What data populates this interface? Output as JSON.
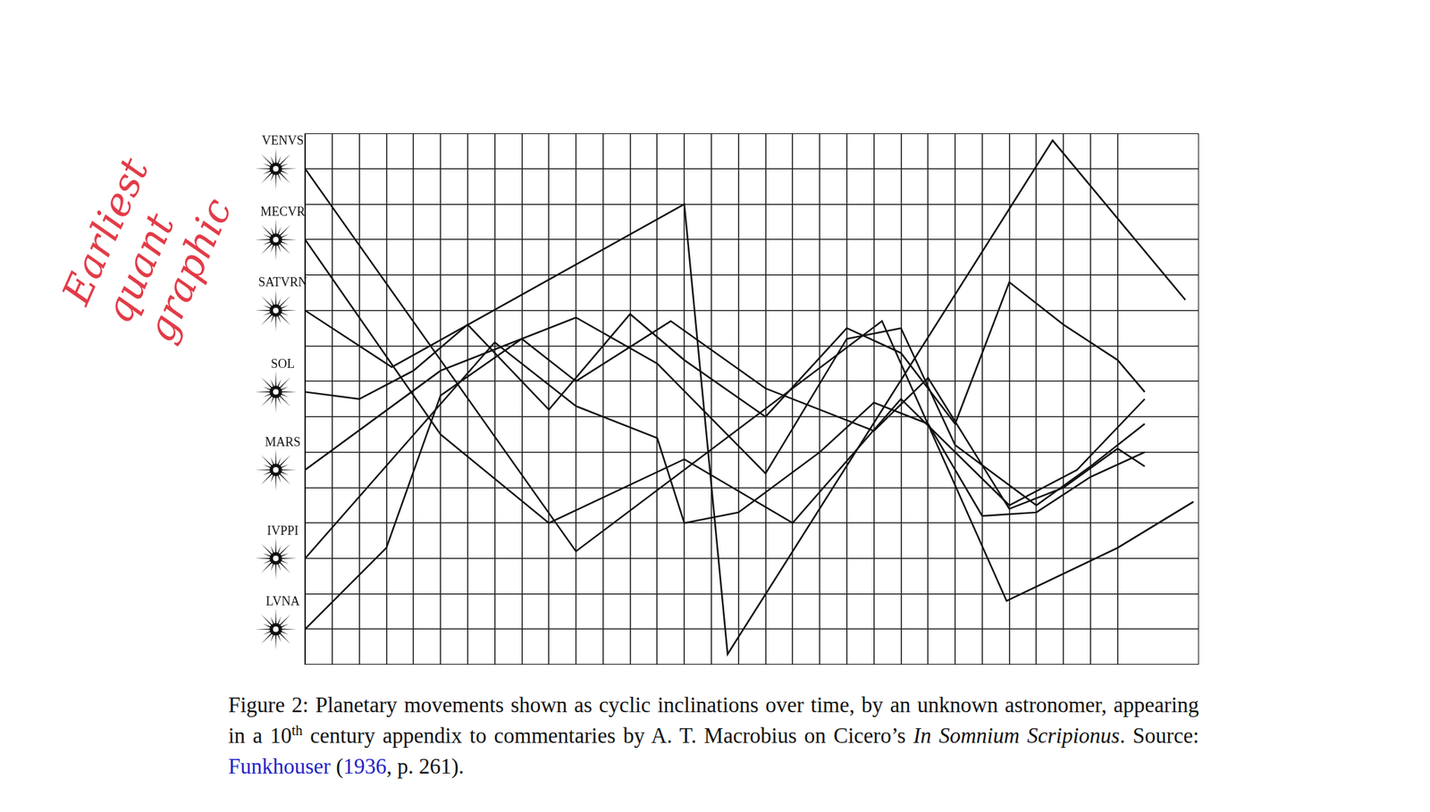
{
  "chart_data": {
    "type": "line",
    "xlim": [
      0,
      33
    ],
    "xticks": [
      0,
      1,
      2,
      3,
      4,
      5,
      6,
      7,
      8,
      9,
      10,
      11,
      12,
      13,
      14,
      15,
      16,
      17,
      18,
      19,
      20,
      21,
      22,
      23,
      24,
      25,
      26,
      27,
      28,
      29,
      30
    ],
    "ylim": [
      -1,
      14
    ],
    "yticks": [
      0,
      1,
      2,
      3,
      4,
      5,
      6,
      7,
      8,
      9,
      10,
      11,
      12,
      13
    ],
    "grid": true,
    "tick_labels": false,
    "color": "#111111",
    "marker": "none",
    "series": [
      {
        "name": "VENVS",
        "x": [
          0,
          10,
          21.3,
          25.9,
          30,
          32.8
        ],
        "values": [
          13,
          2.2,
          8.7,
          0.8,
          2.3,
          3.6
        ]
      },
      {
        "name": "MECVR",
        "x": [
          0,
          5,
          9,
          14,
          18,
          22,
          26,
          28.5,
          31
        ],
        "values": [
          11,
          5.5,
          3,
          4.8,
          3,
          6.5,
          3.5,
          4.5,
          6.5
        ]
      },
      {
        "name": "SATVRN",
        "x": [
          0,
          3.2,
          14,
          15.6,
          27.6,
          32.5
        ],
        "values": [
          9,
          7.4,
          12,
          -0.7,
          13.8,
          9.3
        ]
      },
      {
        "name": "SOL",
        "x": [
          0,
          2,
          4,
          6,
          9,
          12,
          14,
          17,
          20,
          22,
          24,
          26,
          28,
          30,
          31
        ],
        "values": [
          6.7,
          6.5,
          7.3,
          8.6,
          6.2,
          8.9,
          7.6,
          6,
          8.5,
          7.8,
          5.8,
          9.8,
          8.6,
          7.6,
          6.7
        ]
      },
      {
        "name": "MARS",
        "x": [
          0,
          5,
          10,
          13,
          17,
          20,
          22,
          24,
          27,
          29,
          31
        ],
        "values": [
          4.5,
          7.3,
          8.8,
          7.5,
          4.4,
          8.2,
          8.5,
          5.2,
          3.5,
          4.6,
          5.8
        ]
      },
      {
        "name": "IVPPI",
        "x": [
          0,
          7,
          10,
          13,
          14,
          16,
          19,
          21,
          23,
          25,
          27,
          29,
          31
        ],
        "values": [
          2,
          8.1,
          6.3,
          5.4,
          3,
          3.3,
          5,
          6.4,
          5.8,
          3.2,
          3.3,
          4.3,
          5
        ]
      },
      {
        "name": "LVNA",
        "x": [
          0,
          3,
          5,
          8,
          10,
          13.5,
          17,
          21,
          23,
          26,
          28,
          30,
          31
        ],
        "values": [
          0,
          2.3,
          6.6,
          8.2,
          7,
          8.7,
          6.8,
          5.6,
          7.1,
          3.4,
          4,
          5.1,
          4.6
        ]
      }
    ]
  },
  "annotation": {
    "lines": [
      "Earliest",
      "quant",
      "graphic"
    ],
    "color": "#e23b47"
  },
  "caption": {
    "segments": [
      {
        "text": "Figure 2:  Planetary movements shown as cyclic inclinations over time, by an unknown astronomer, appearing in a 10",
        "style": "normal"
      },
      {
        "text": "th",
        "style": "superscript"
      },
      {
        "text": " century appendix to commentaries by A. T. Macrobius on Cicero’s ",
        "style": "normal"
      },
      {
        "text": "In Somnium Scripionus",
        "style": "italic"
      },
      {
        "text": ". Source: ",
        "style": "normal"
      },
      {
        "text": "Funkhouser",
        "style": "link"
      },
      {
        "text": " (",
        "style": "normal"
      },
      {
        "text": "1936",
        "style": "link"
      },
      {
        "text": ", p. 261).",
        "style": "normal"
      }
    ]
  }
}
